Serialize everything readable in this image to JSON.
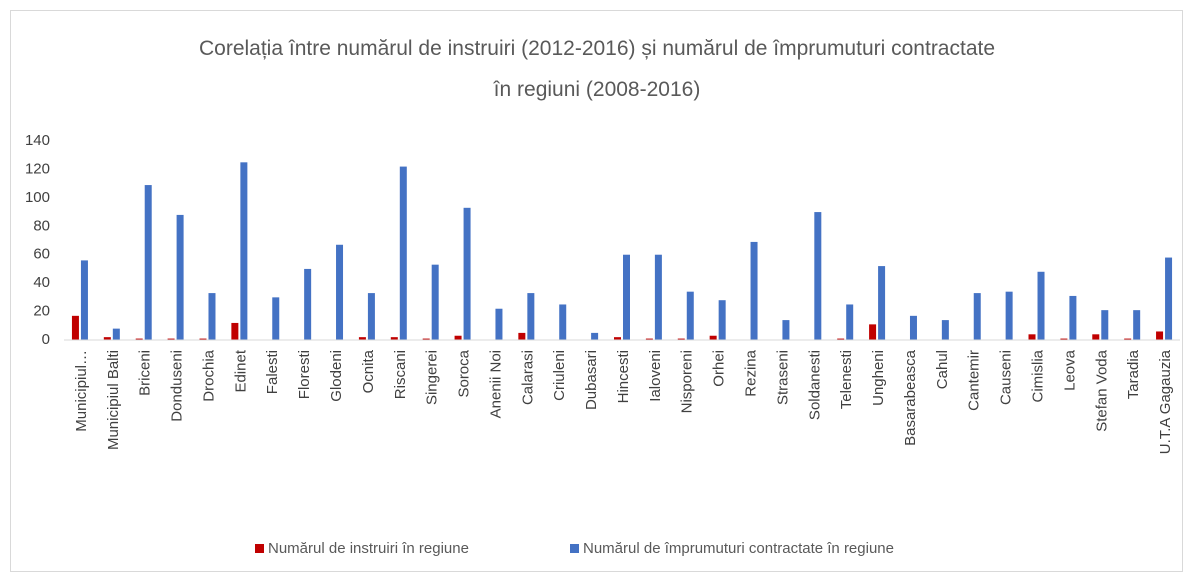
{
  "chart_data": {
    "type": "bar",
    "title": "Corelația între numărul de instruiri (2012-2016) și numărul de împrumuturi contractate\nîn regiuni (2008-2016)",
    "categories": [
      "Municipiul…",
      "Municipiul Balti",
      "Briceni",
      "Donduseni",
      "Drochia",
      "Edinet",
      "Falesti",
      "Floresti",
      "Glodeni",
      "Ocnita",
      "Riscani",
      "Singerei",
      "Soroca",
      "Anenii Noi",
      "Calarasi",
      "Criuleni",
      "Dubasari",
      "Hincesti",
      "Ialoveni",
      "Nisporeni",
      "Orhei",
      "Rezina",
      "Straseni",
      "Soldanesti",
      "Telenesti",
      "Ungheni",
      "Basarabeasca",
      "Cahul",
      "Cantemir",
      "Causeni",
      "Cimislia",
      "Leova",
      "Stefan Voda",
      "Taradia",
      "U.T.A Gagauzia"
    ],
    "series": [
      {
        "name": "Numărul de instruiri în regiune",
        "color": "#c00000",
        "values": [
          17,
          2,
          1,
          1,
          1,
          12,
          0,
          0,
          0,
          2,
          2,
          1,
          3,
          0,
          5,
          0,
          0,
          2,
          1,
          1,
          3,
          0,
          0,
          0,
          1,
          11,
          0,
          0,
          0,
          0,
          4,
          1,
          4,
          1,
          6
        ]
      },
      {
        "name": "Numărul de împrumuturi contractate în regiune",
        "color": "#4472c4",
        "values": [
          56,
          8,
          109,
          88,
          33,
          125,
          30,
          50,
          67,
          33,
          122,
          53,
          93,
          22,
          33,
          25,
          5,
          60,
          60,
          34,
          28,
          69,
          14,
          90,
          25,
          52,
          17,
          14,
          33,
          34,
          48,
          31,
          21,
          21,
          58
        ]
      }
    ],
    "ylim": [
      0,
      140
    ],
    "yticks": [
      0,
      20,
      40,
      60,
      80,
      100,
      120,
      140
    ],
    "grid": false,
    "legend": "bottom"
  }
}
